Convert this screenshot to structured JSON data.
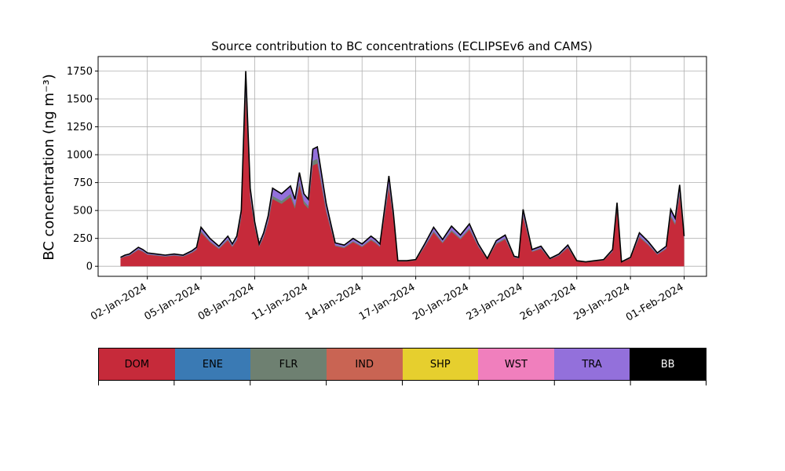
{
  "chart_data": {
    "type": "area",
    "title": "Source contribution to BC concentrations (ECLIPSEv6 and CAMS)",
    "ylabel": "BC concentration (ng m⁻³)",
    "xlabel": "",
    "ylim": [
      -90,
      1880
    ],
    "yticks": [
      0,
      250,
      500,
      750,
      1000,
      1250,
      1500,
      1750
    ],
    "xlim": [
      "2023-12-30T06:00",
      "2024-02-02T06:00"
    ],
    "xticks": [
      "2024-01-02",
      "2024-01-05",
      "2024-01-08",
      "2024-01-11",
      "2024-01-14",
      "2024-01-17",
      "2024-01-20",
      "2024-01-23",
      "2024-01-26",
      "2024-01-29",
      "2024-02-01"
    ],
    "xtick_labels": [
      "02-Jan-2024",
      "05-Jan-2024",
      "08-Jan-2024",
      "11-Jan-2024",
      "14-Jan-2024",
      "17-Jan-2024",
      "20-Jan-2024",
      "23-Jan-2024",
      "26-Jan-2024",
      "29-Jan-2024",
      "01-Feb-2024"
    ],
    "grid": true,
    "total_line_color": "#000000",
    "series": [
      {
        "name": "DOM",
        "color": "#c62a3a"
      },
      {
        "name": "ENE",
        "color": "#3a7ab4"
      },
      {
        "name": "FLR",
        "color": "#6e8071"
      },
      {
        "name": "IND",
        "color": "#c96453"
      },
      {
        "name": "SHP",
        "color": "#e6cf2e"
      },
      {
        "name": "WST",
        "color": "#f07fbd"
      },
      {
        "name": "TRA",
        "color": "#9370db"
      },
      {
        "name": "BB",
        "color": "#000000"
      }
    ],
    "x": [
      "2023-12-31T12:00",
      "2023-12-31T18:00",
      "2024-01-01T00:00",
      "2024-01-01T12:00",
      "2024-01-01T18:00",
      "2024-01-02T00:00",
      "2024-01-02T12:00",
      "2024-01-03T00:00",
      "2024-01-03T12:00",
      "2024-01-04T00:00",
      "2024-01-04T12:00",
      "2024-01-04T18:00",
      "2024-01-05T00:00",
      "2024-01-05T12:00",
      "2024-01-06T00:00",
      "2024-01-06T12:00",
      "2024-01-06T18:00",
      "2024-01-07T00:00",
      "2024-01-07T06:00",
      "2024-01-07T12:00",
      "2024-01-07T18:00",
      "2024-01-08T00:00",
      "2024-01-08T06:00",
      "2024-01-08T12:00",
      "2024-01-08T18:00",
      "2024-01-09T00:00",
      "2024-01-09T12:00",
      "2024-01-10T00:00",
      "2024-01-10T06:00",
      "2024-01-10T12:00",
      "2024-01-10T18:00",
      "2024-01-11T00:00",
      "2024-01-11T06:00",
      "2024-01-11T12:00",
      "2024-01-12T00:00",
      "2024-01-12T12:00",
      "2024-01-13T00:00",
      "2024-01-13T12:00",
      "2024-01-14T00:00",
      "2024-01-14T12:00",
      "2024-01-14T18:00",
      "2024-01-15T00:00",
      "2024-01-15T12:00",
      "2024-01-15T18:00",
      "2024-01-16T00:00",
      "2024-01-16T12:00",
      "2024-01-17T00:00",
      "2024-01-17T12:00",
      "2024-01-18T00:00",
      "2024-01-18T12:00",
      "2024-01-19T00:00",
      "2024-01-19T12:00",
      "2024-01-20T00:00",
      "2024-01-20T12:00",
      "2024-01-21T00:00",
      "2024-01-21T12:00",
      "2024-01-22T00:00",
      "2024-01-22T12:00",
      "2024-01-22T18:00",
      "2024-01-23T00:00",
      "2024-01-23T12:00",
      "2024-01-24T00:00",
      "2024-01-24T12:00",
      "2024-01-25T00:00",
      "2024-01-25T12:00",
      "2024-01-26T00:00",
      "2024-01-26T12:00",
      "2024-01-27T00:00",
      "2024-01-27T12:00",
      "2024-01-28T00:00",
      "2024-01-28T06:00",
      "2024-01-28T12:00",
      "2024-01-29T00:00",
      "2024-01-29T12:00",
      "2024-01-30T00:00",
      "2024-01-30T12:00",
      "2024-01-31T00:00",
      "2024-01-31T06:00",
      "2024-01-31T12:00",
      "2024-01-31T18:00",
      "2024-02-01T00:00"
    ],
    "total": [
      80,
      100,
      110,
      170,
      150,
      120,
      110,
      100,
      110,
      100,
      140,
      170,
      350,
      250,
      180,
      270,
      200,
      270,
      500,
      1750,
      700,
      400,
      200,
      300,
      450,
      700,
      650,
      720,
      600,
      840,
      650,
      600,
      1050,
      1070,
      560,
      210,
      190,
      250,
      200,
      270,
      240,
      200,
      810,
      480,
      50,
      50,
      60,
      200,
      350,
      240,
      360,
      280,
      380,
      200,
      70,
      230,
      280,
      90,
      80,
      510,
      150,
      180,
      70,
      110,
      190,
      50,
      40,
      50,
      60,
      150,
      570,
      40,
      80,
      300,
      220,
      120,
      180,
      510,
      430,
      730,
      270
    ]
  }
}
